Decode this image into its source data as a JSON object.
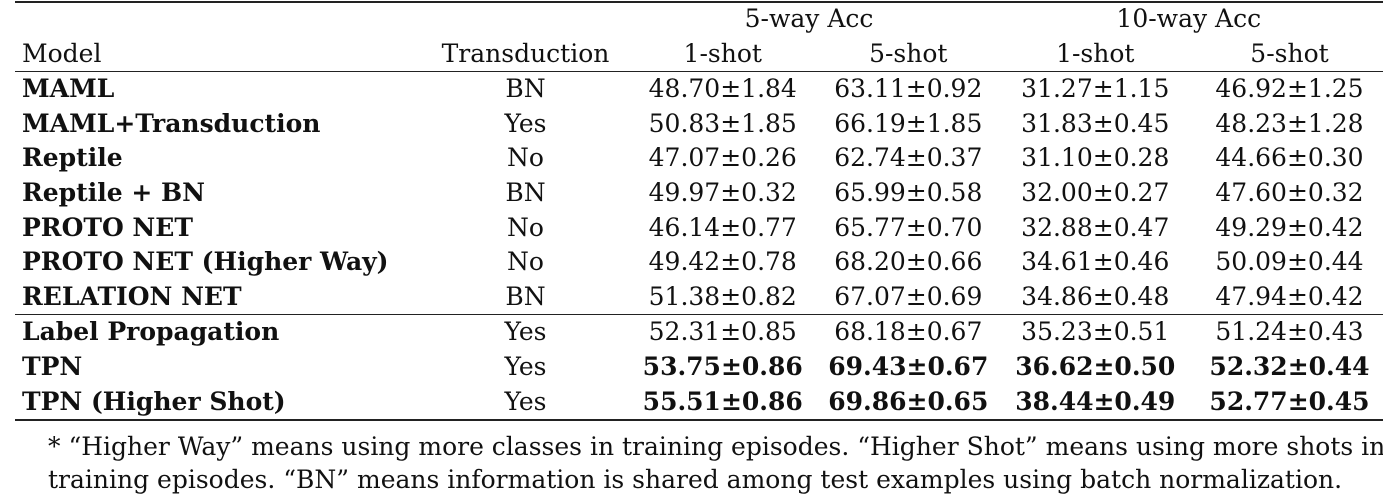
{
  "header": {
    "group_5way": "5-way Acc",
    "group_10way": "10-way Acc",
    "col_model": "Model",
    "col_transduction": "Transduction",
    "shot_labels": [
      "1-shot",
      "5-shot",
      "1-shot",
      "5-shot"
    ]
  },
  "rows": [
    {
      "model": "MAML",
      "trans": "BN",
      "v": [
        "48.70±1.84",
        "63.11±0.92",
        "31.27±1.15",
        "46.92±1.25"
      ]
    },
    {
      "model": "MAML+Transduction",
      "trans": "Yes",
      "v": [
        "50.83±1.85",
        "66.19±1.85",
        "31.83±0.45",
        "48.23±1.28"
      ]
    },
    {
      "model": "Reptile",
      "trans": "No",
      "v": [
        "47.07±0.26",
        "62.74±0.37",
        "31.10±0.28",
        "44.66±0.30"
      ]
    },
    {
      "model": "Reptile + BN",
      "trans": "BN",
      "v": [
        "49.97±0.32",
        "65.99±0.58",
        "32.00±0.27",
        "47.60±0.32"
      ]
    },
    {
      "model": "PROTO NET",
      "trans": "No",
      "v": [
        "46.14±0.77",
        "65.77±0.70",
        "32.88±0.47",
        "49.29±0.42"
      ]
    },
    {
      "model": "PROTO NET (Higher Way)",
      "trans": "No",
      "v": [
        "49.42±0.78",
        "68.20±0.66",
        "34.61±0.46",
        "50.09±0.44"
      ]
    },
    {
      "model": "RELATION NET",
      "trans": "BN",
      "v": [
        "51.38±0.82",
        "67.07±0.69",
        "34.86±0.48",
        "47.94±0.42"
      ]
    },
    {
      "model": "Label Propagation",
      "trans": "Yes",
      "v": [
        "52.31±0.85",
        "68.18±0.67",
        "35.23±0.51",
        "51.24±0.43"
      ]
    },
    {
      "model": "TPN",
      "trans": "Yes",
      "v": [
        "53.75±0.86",
        "69.43±0.67",
        "36.62±0.50",
        "52.32±0.44"
      ]
    },
    {
      "model": "TPN (Higher Shot)",
      "trans": "Yes",
      "v": [
        "55.51±0.86",
        "69.86±0.65",
        "38.44±0.49",
        "52.77±0.45"
      ]
    }
  ],
  "footnote": {
    "line1": "* “Higher Way” means using more classes in training episodes. “Higher Shot” means using more shots in",
    "line2": "training episodes. “BN” means information is shared among test examples using batch normalization."
  }
}
